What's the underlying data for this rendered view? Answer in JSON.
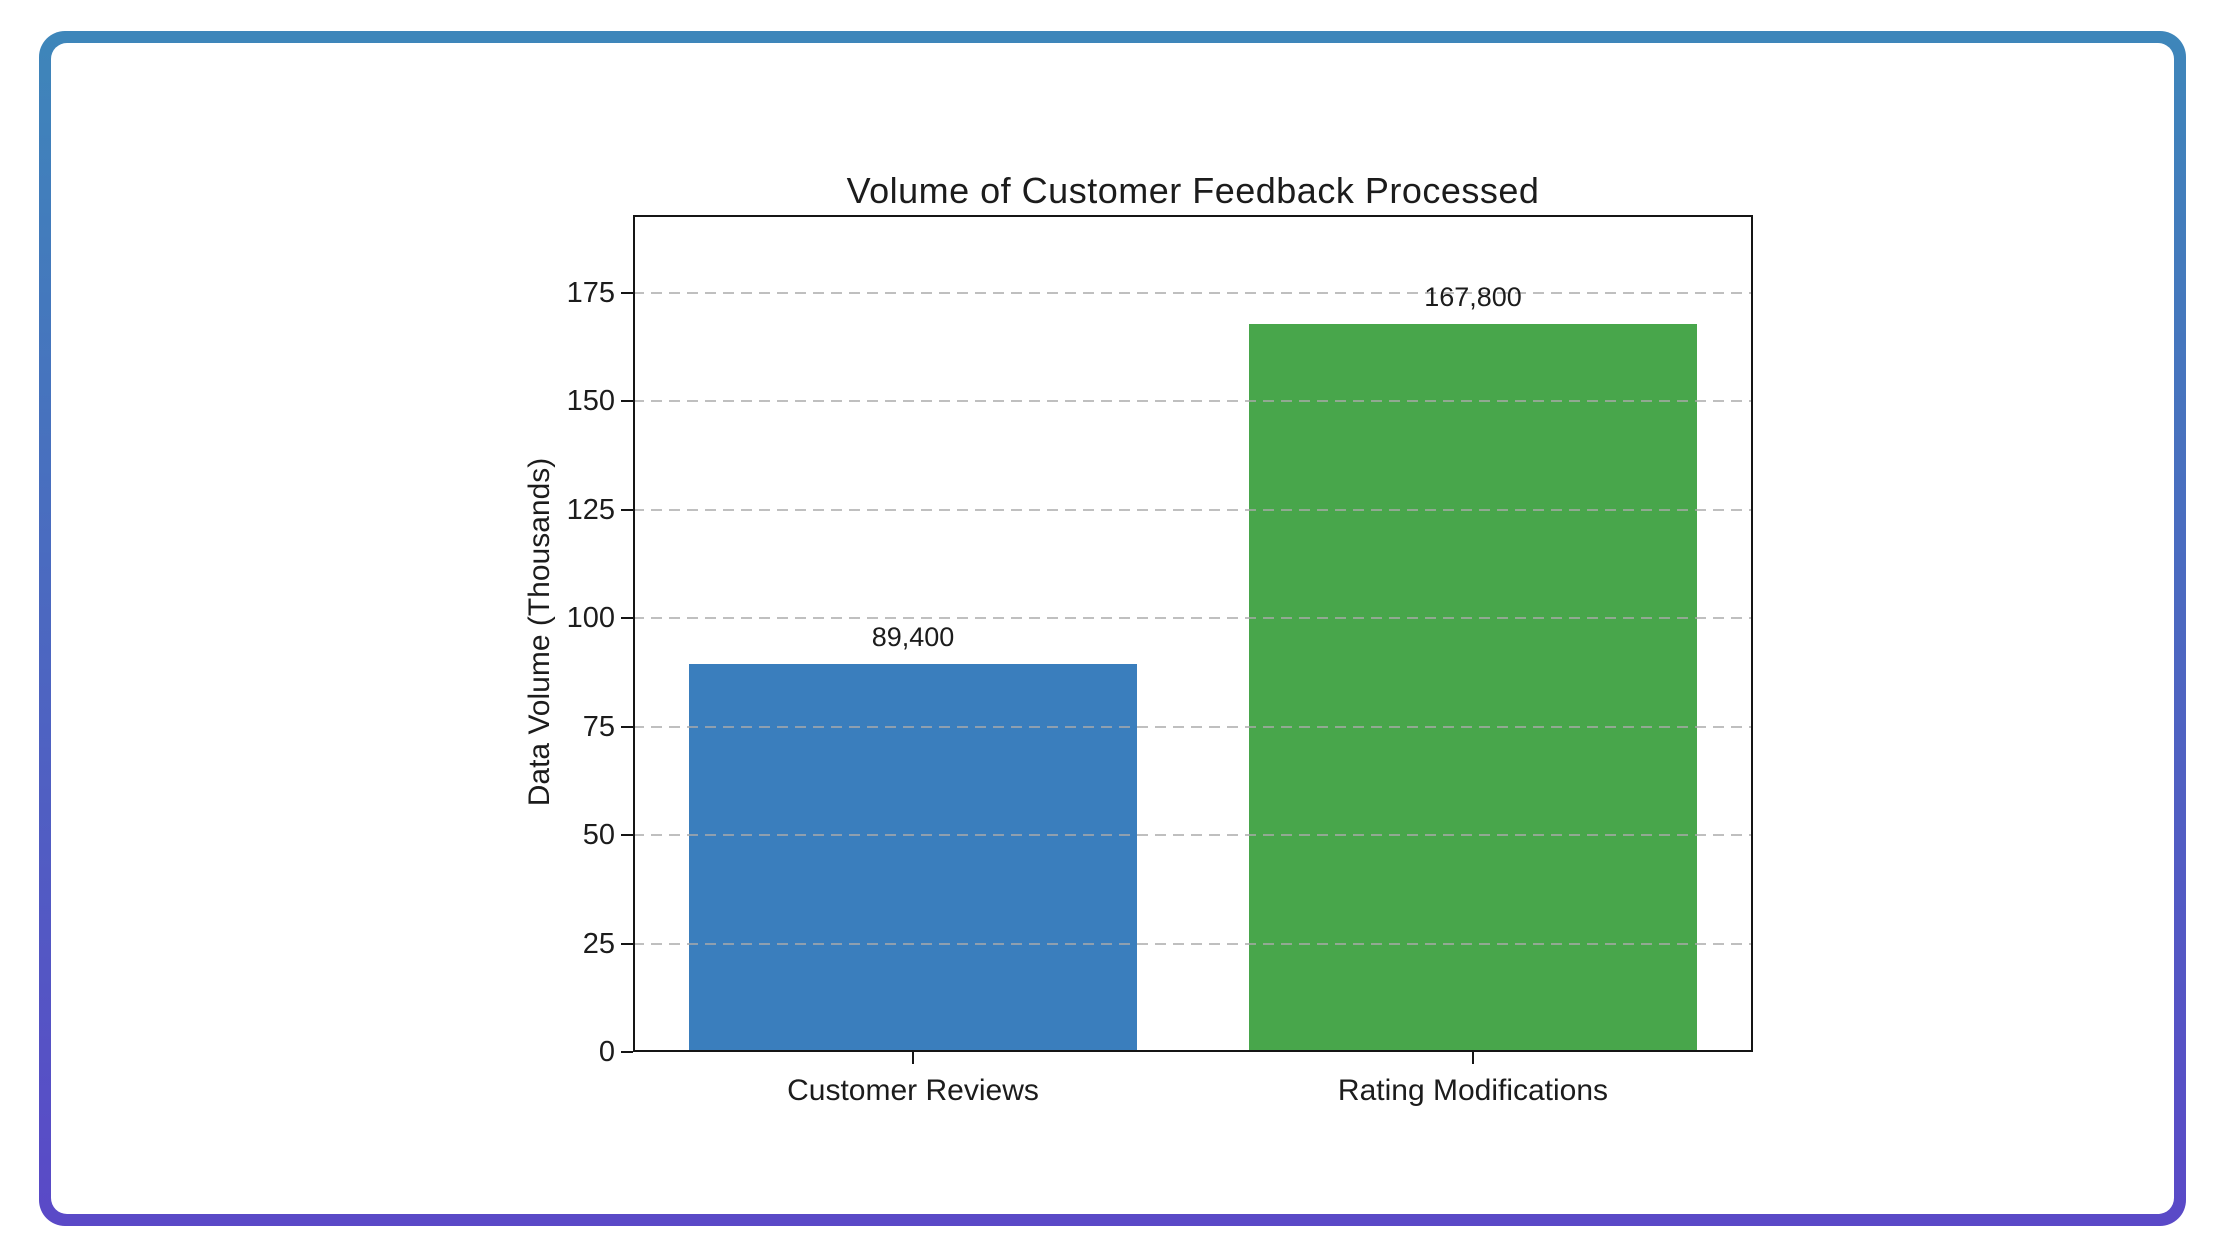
{
  "frame": {
    "gradient_top": "#3e86ba",
    "gradient_bottom": "#5a49c7"
  },
  "chart_data": {
    "type": "bar",
    "title": "Volume of Customer Feedback Processed",
    "ylabel": "Data Volume (Thousands)",
    "xlabel": "",
    "categories": [
      "Customer Reviews",
      "Rating Modifications"
    ],
    "values": [
      89.4,
      167.8
    ],
    "value_labels": [
      "89,400",
      "167,800"
    ],
    "bar_colors": [
      "#3a7ebd",
      "#48a64b"
    ],
    "yticks": [
      0,
      25,
      50,
      75,
      100,
      125,
      150,
      175
    ],
    "ylim": [
      0,
      193
    ],
    "grid": {
      "axis": "y",
      "style": "dashed",
      "color": "#c6c6c6"
    },
    "legend": "none",
    "text_color": "#1c1c1c",
    "spine_color": "#151515"
  }
}
